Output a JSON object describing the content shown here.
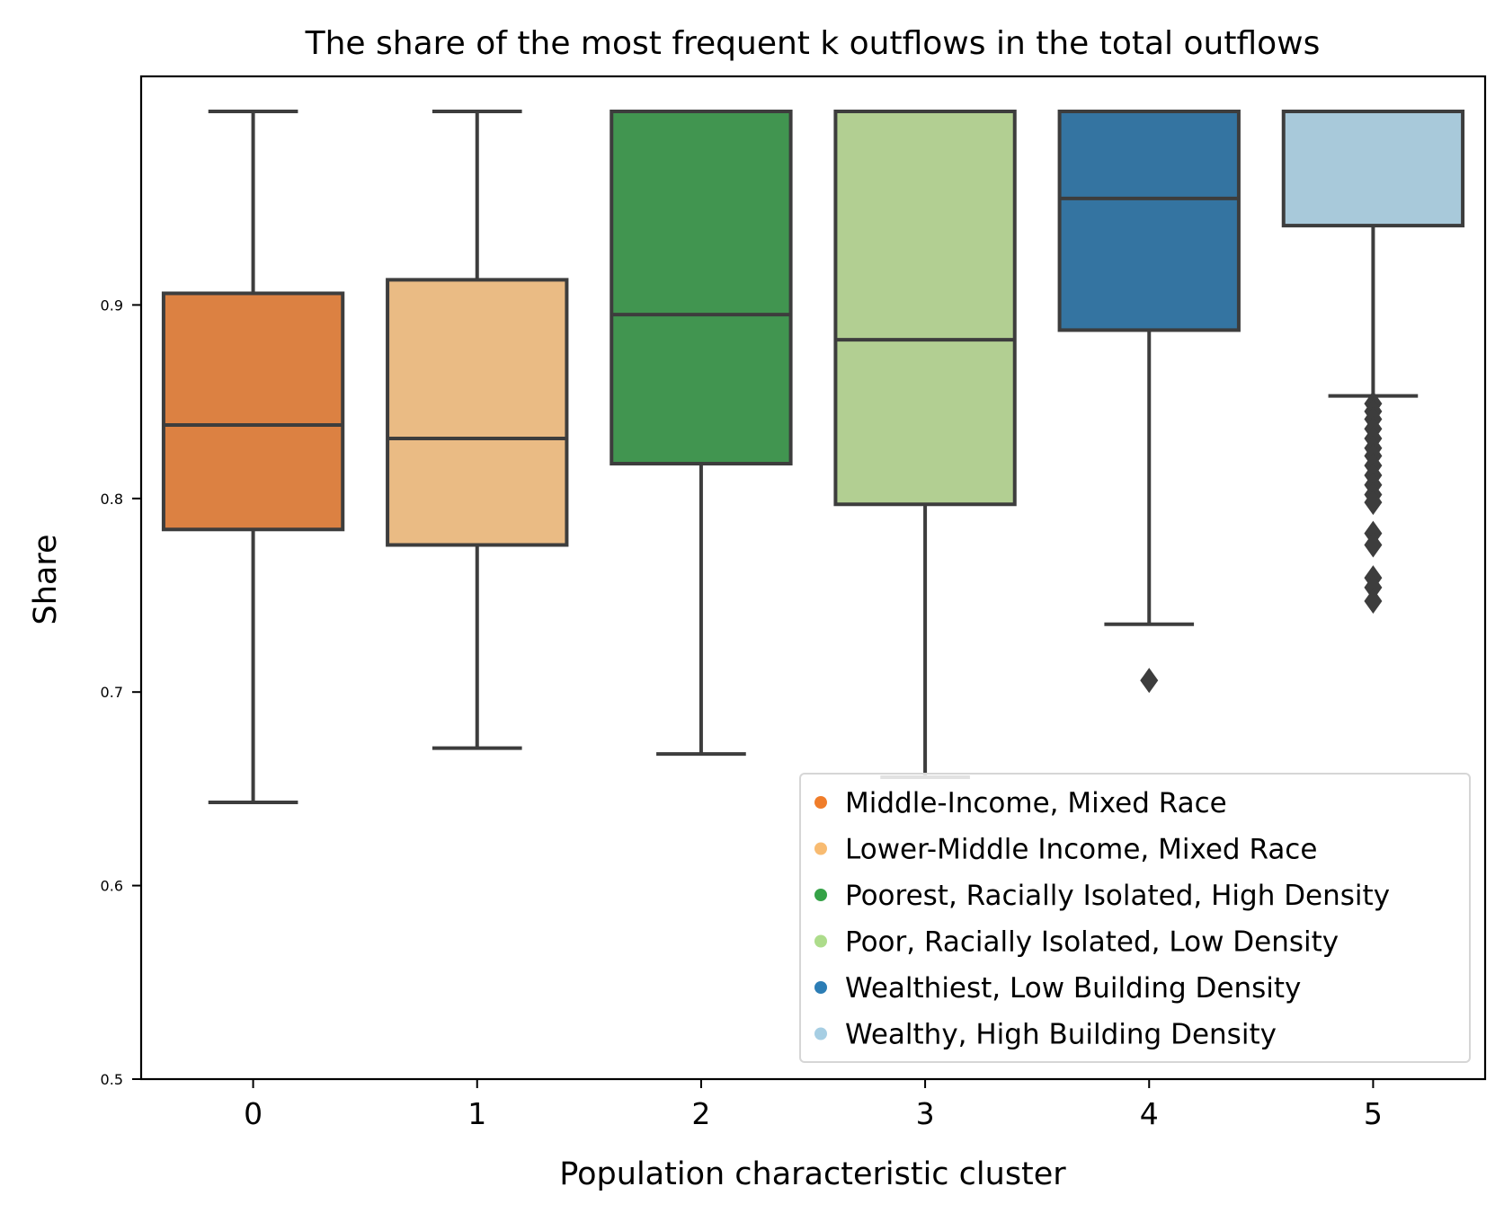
{
  "chart_data": {
    "type": "box",
    "title": "The share of the most frequent k outflows in the total outflows",
    "xlabel": "Population characteristic cluster",
    "ylabel": "Share",
    "ylim": [
      0.5,
      1.0
    ],
    "yticks": [
      "0.5",
      "0.6",
      "0.7",
      "0.8",
      "0.9"
    ],
    "categories": [
      "0",
      "1",
      "2",
      "3",
      "4",
      "5"
    ],
    "legend_position": "lower-right",
    "series": [
      {
        "name": "Middle-Income, Mixed Race",
        "color": "#dc8142",
        "legend_color": "#f07d2a",
        "whisker_low": 0.643,
        "q1": 0.784,
        "median": 0.838,
        "q3": 0.906,
        "whisker_high": 1.0,
        "outliers": []
      },
      {
        "name": "Lower-Middle Income, Mixed Race",
        "color": "#eabb84",
        "legend_color": "#f8bb71",
        "whisker_low": 0.671,
        "q1": 0.776,
        "median": 0.831,
        "q3": 0.913,
        "whisker_high": 1.0,
        "outliers": []
      },
      {
        "name": "Poorest, Racially Isolated, High Density",
        "color": "#419550",
        "legend_color": "#35a247",
        "whisker_low": 0.668,
        "q1": 0.818,
        "median": 0.895,
        "q3": 1.0,
        "whisker_high": 1.0,
        "outliers": []
      },
      {
        "name": "Poor, Racially Isolated, Low Density",
        "color": "#b2cf92",
        "legend_color": "#addc8b",
        "whisker_low": 0.656,
        "q1": 0.797,
        "median": 0.882,
        "q3": 1.0,
        "whisker_high": 1.0,
        "outliers": []
      },
      {
        "name": "Wealthiest, Low Building Density",
        "color": "#3474a1",
        "legend_color": "#2c7db5",
        "whisker_low": 0.735,
        "q1": 0.887,
        "median": 0.955,
        "q3": 1.0,
        "whisker_high": 1.0,
        "outliers": [
          0.706
        ]
      },
      {
        "name": "Wealthy, High Building Density",
        "color": "#a8c9da",
        "legend_color": "#a6cee3",
        "whisker_low": 0.853,
        "q1": 0.941,
        "median": 1.0,
        "q3": 1.0,
        "whisker_high": 1.0,
        "outliers": [
          0.849,
          0.845,
          0.841,
          0.836,
          0.831,
          0.826,
          0.822,
          0.817,
          0.812,
          0.807,
          0.802,
          0.798,
          0.782,
          0.776,
          0.759,
          0.754,
          0.747
        ]
      }
    ]
  }
}
